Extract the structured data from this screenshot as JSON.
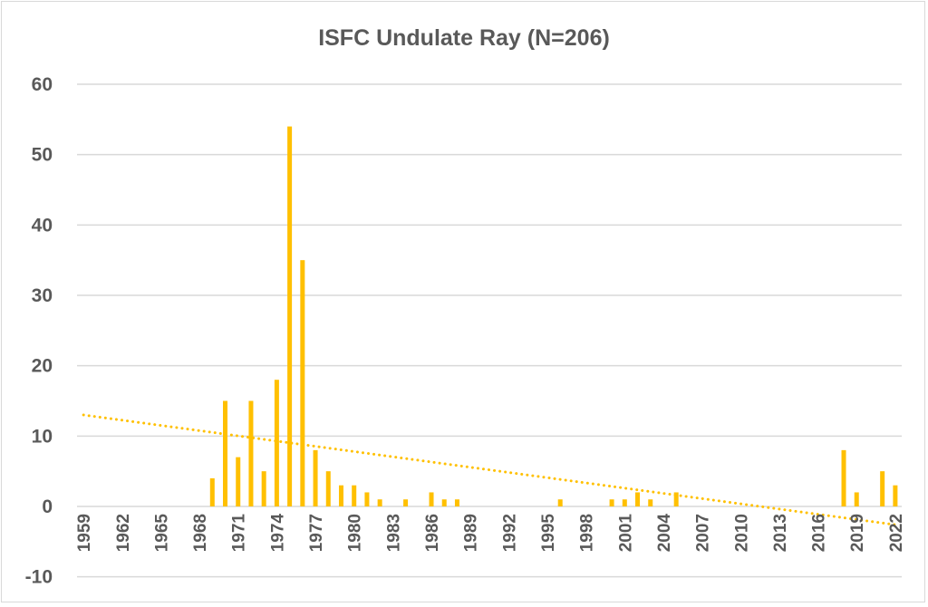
{
  "chart_data": {
    "type": "bar",
    "title": "ISFC Undulate Ray (N=206)",
    "xlabel": "",
    "ylabel": "",
    "ylim": [
      -10,
      60
    ],
    "yticks": [
      -10,
      0,
      10,
      20,
      30,
      40,
      50,
      60
    ],
    "grid": true,
    "legend": "none",
    "x_start": 1959,
    "x_end": 2022,
    "x_label_every": 3,
    "bar_color": "#FFC000",
    "values_by_year": {
      "1969": 4,
      "1970": 15,
      "1971": 7,
      "1972": 15,
      "1973": 5,
      "1974": 18,
      "1975": 54,
      "1976": 35,
      "1977": 8,
      "1978": 5,
      "1979": 3,
      "1980": 3,
      "1981": 2,
      "1982": 1,
      "1984": 1,
      "1986": 2,
      "1987": 1,
      "1988": 1,
      "1996": 1,
      "2000": 1,
      "2001": 1,
      "2002": 2,
      "2003": 1,
      "2005": 2,
      "2018": 8,
      "2019": 2,
      "2021": 5,
      "2022": 3
    },
    "trendline": {
      "type": "linear",
      "style": "dotted",
      "start": [
        1959,
        13.0
      ],
      "end": [
        2022,
        -2.6
      ]
    }
  }
}
